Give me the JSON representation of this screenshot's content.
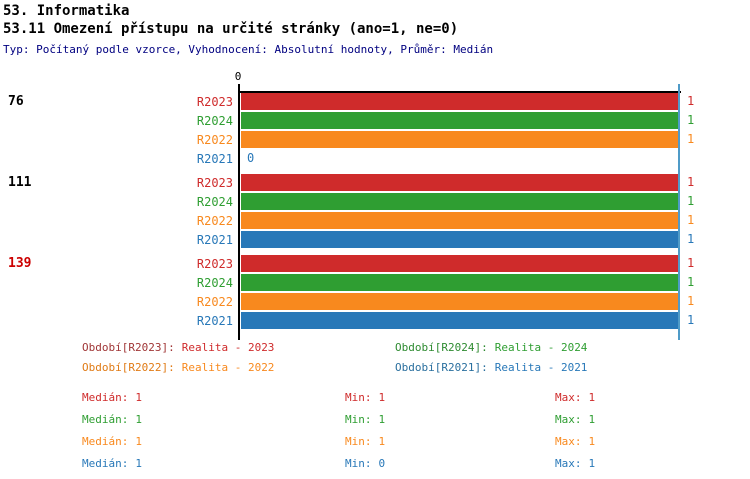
{
  "header": {
    "title": "53. Informatika",
    "subtitle": "53.11 Omezení přístupu na určité stránky (ano=1, ne=0)",
    "meta": "Typ: Počítaný podle vzorce, Vyhodnocení: Absolutní hodnoty, Průměr: Medián"
  },
  "colors": {
    "R2023": "#cf2b2b",
    "R2024": "#2f9e32",
    "R2022": "#f8891e",
    "R2021": "#2878b8",
    "axis": "#000000",
    "median_line": "#4f9bc8",
    "meta_text": "#000080",
    "count_normal": "#000000",
    "count_highlight": "#cc0000"
  },
  "chart_data": {
    "type": "bar",
    "orientation": "horizontal",
    "title": "53.11 Omezení přístupu na určité stránky (ano=1, ne=0)",
    "xlabel": "",
    "ylabel": "",
    "xlim": [
      0,
      1
    ],
    "grid": false,
    "x_axis_origin_label": "0",
    "median_marker_value": 1,
    "series_order": [
      "R2023",
      "R2024",
      "R2022",
      "R2021"
    ],
    "groups": [
      {
        "count": "76",
        "count_color": "#000000",
        "bars": [
          {
            "series": "R2023",
            "value": 1
          },
          {
            "series": "R2024",
            "value": 1
          },
          {
            "series": "R2022",
            "value": 1
          },
          {
            "series": "R2021",
            "value": 0
          }
        ]
      },
      {
        "count": "111",
        "count_color": "#000000",
        "bars": [
          {
            "series": "R2023",
            "value": 1
          },
          {
            "series": "R2024",
            "value": 1
          },
          {
            "series": "R2022",
            "value": 1
          },
          {
            "series": "R2021",
            "value": 1
          }
        ]
      },
      {
        "count": "139",
        "count_color": "#cc0000",
        "bars": [
          {
            "series": "R2023",
            "value": 1
          },
          {
            "series": "R2024",
            "value": 1
          },
          {
            "series": "R2022",
            "value": 1
          },
          {
            "series": "R2021",
            "value": 1
          }
        ]
      }
    ]
  },
  "legend": {
    "items": [
      {
        "label": "Období[R2023]:",
        "value": "Realita - 2023",
        "label_color": "#a03636",
        "value_color": "#cf2b2b"
      },
      {
        "label": "Období[R2024]:",
        "value": "Realita - 2024",
        "label_color": "#2e8b31",
        "value_color": "#2f9e32"
      },
      {
        "label": "Období[R2022]:",
        "value": "Realita - 2022",
        "label_color": "#e07b16",
        "value_color": "#f8891e"
      },
      {
        "label": "Období[R2021]:",
        "value": "Realita - 2021",
        "label_color": "#2a6f9e",
        "value_color": "#2878b8"
      }
    ]
  },
  "stats": {
    "rows": [
      {
        "median_label": "Medián:",
        "median": "1",
        "min_label": "Min:",
        "min": "1",
        "max_label": "Max:",
        "max": "1",
        "color": "#cf2b2b"
      },
      {
        "median_label": "Medián:",
        "median": "1",
        "min_label": "Min:",
        "min": "1",
        "max_label": "Max:",
        "max": "1",
        "color": "#2f9e32"
      },
      {
        "median_label": "Medián:",
        "median": "1",
        "min_label": "Min:",
        "min": "1",
        "max_label": "Max:",
        "max": "1",
        "color": "#f8891e"
      },
      {
        "median_label": "Medián:",
        "median": "1",
        "min_label": "Min:",
        "min": "0",
        "max_label": "Max:",
        "max": "1",
        "color": "#2878b8"
      }
    ]
  }
}
